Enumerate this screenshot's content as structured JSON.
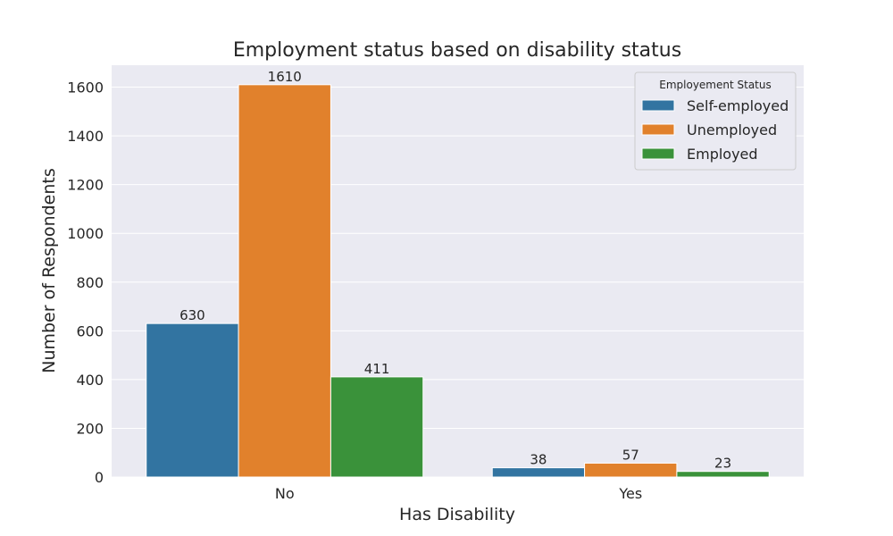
{
  "chart_data": {
    "type": "bar",
    "title": "Employment status based on disability status",
    "xlabel": "Has Disability",
    "ylabel": "Number of Respondents",
    "categories": [
      "No",
      "Yes"
    ],
    "series": [
      {
        "name": "Self-employed",
        "values": [
          630,
          38
        ],
        "color": "#3274a1"
      },
      {
        "name": "Unemployed",
        "values": [
          1610,
          57
        ],
        "color": "#e1812c"
      },
      {
        "name": "Employed",
        "values": [
          411,
          23
        ],
        "color": "#3a923a"
      }
    ],
    "ylim": [
      0,
      1690
    ],
    "yticks": [
      0,
      200,
      400,
      600,
      800,
      1000,
      1200,
      1400,
      1600
    ],
    "grid": true,
    "legend": {
      "title": "Employement Status",
      "position": "top-right"
    },
    "background": "#eaeaf2"
  }
}
